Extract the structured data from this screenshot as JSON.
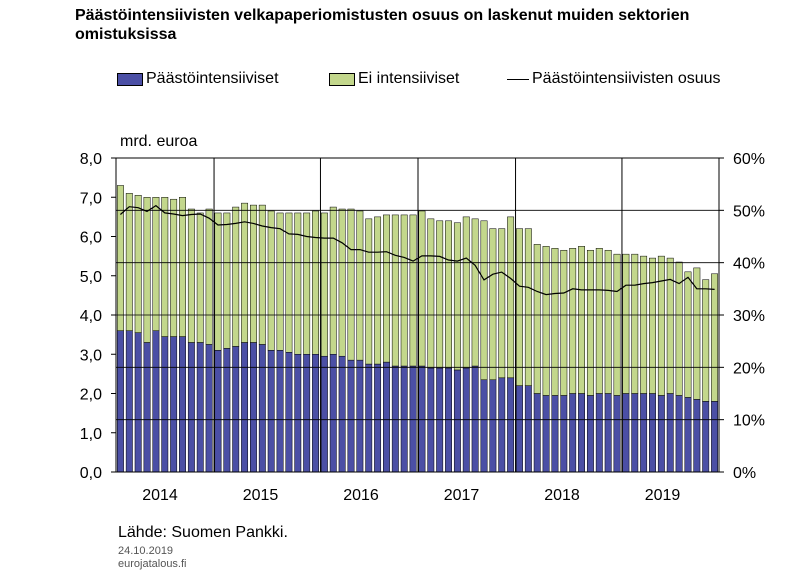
{
  "title": "Päästöintensiivisten velkapaperiomistusten osuus on laskenut muiden sektorien omistuksissa",
  "unit_label": "mrd. euroa",
  "source": "Lähde: Suomen Pankki.",
  "date": "24.10.2019",
  "site": "eurojatalous.fi",
  "colors": {
    "intensive": "#4b4fa5",
    "other": "#c3d78c",
    "line": "#000000"
  },
  "chart_data": {
    "type": "bar",
    "stacked": true,
    "x_labels": [
      "2014",
      "2015",
      "2016",
      "2017",
      "2018",
      "2019"
    ],
    "y_left": {
      "min": 0,
      "max": 8,
      "ticks": [
        "0,0",
        "1,0",
        "2,0",
        "3,0",
        "4,0",
        "5,0",
        "6,0",
        "7,0",
        "8,0"
      ]
    },
    "y_right": {
      "min": 0,
      "max": 60,
      "ticks": [
        "0%",
        "10%",
        "20%",
        "30%",
        "40%",
        "50%",
        "60%"
      ]
    },
    "series": [
      {
        "name": "Päästöintensiiviset",
        "type": "bar",
        "axis": "left",
        "values": [
          3.6,
          3.6,
          3.55,
          3.3,
          3.6,
          3.45,
          3.45,
          3.45,
          3.3,
          3.3,
          3.25,
          3.1,
          3.15,
          3.2,
          3.3,
          3.3,
          3.25,
          3.1,
          3.1,
          3.05,
          3.0,
          3.0,
          3.0,
          2.95,
          3.0,
          2.95,
          2.85,
          2.85,
          2.75,
          2.75,
          2.8,
          2.7,
          2.7,
          2.7,
          2.7,
          2.65,
          2.65,
          2.65,
          2.6,
          2.65,
          2.7,
          2.35,
          2.35,
          2.4,
          2.4,
          2.2,
          2.2,
          2.0,
          1.95,
          1.95,
          1.95,
          2.0,
          2.0,
          1.95,
          2.0,
          2.0,
          1.95,
          2.0,
          2.0,
          2.0,
          2.0,
          1.95,
          2.0,
          1.95,
          1.9,
          1.85,
          1.8,
          1.8
        ]
      },
      {
        "name": "Ei intensiiviset",
        "type": "bar",
        "axis": "left",
        "values": [
          3.7,
          3.5,
          3.5,
          3.7,
          3.4,
          3.55,
          3.5,
          3.55,
          3.4,
          3.3,
          3.45,
          3.5,
          3.45,
          3.55,
          3.55,
          3.5,
          3.55,
          3.55,
          3.5,
          3.55,
          3.6,
          3.6,
          3.65,
          3.65,
          3.75,
          3.75,
          3.85,
          3.8,
          3.7,
          3.75,
          3.75,
          3.85,
          3.85,
          3.85,
          3.95,
          3.8,
          3.75,
          3.75,
          3.75,
          3.85,
          3.75,
          4.05,
          3.85,
          3.8,
          4.1,
          4.0,
          4.0,
          3.8,
          3.8,
          3.75,
          3.7,
          3.7,
          3.75,
          3.7,
          3.7,
          3.65,
          3.6,
          3.55,
          3.55,
          3.5,
          3.45,
          3.55,
          3.45,
          3.4,
          3.2,
          3.35,
          3.1,
          3.25
        ]
      },
      {
        "name": "Päästöintensiivisten osuus",
        "type": "line",
        "axis": "right",
        "values": [
          49.2,
          50.7,
          50.5,
          49.8,
          50.9,
          49.5,
          49.3,
          49.0,
          49.2,
          49.3,
          48.5,
          47.2,
          47.3,
          47.5,
          47.8,
          47.5,
          47.0,
          46.7,
          46.5,
          45.5,
          45.4,
          45.0,
          44.8,
          44.7,
          44.7,
          43.8,
          42.5,
          42.5,
          42.0,
          42.0,
          42.1,
          41.4,
          41.0,
          40.3,
          41.3,
          41.3,
          41.2,
          40.5,
          40.3,
          40.9,
          39.5,
          36.7,
          37.8,
          38.2,
          37.0,
          35.5,
          35.3,
          34.5,
          33.9,
          34.1,
          34.2,
          35.0,
          34.8,
          34.8,
          34.8,
          34.7,
          34.5,
          35.7,
          35.7,
          36.0,
          36.2,
          36.5,
          36.8,
          36.0,
          37.2,
          35.0,
          35.0,
          34.9
        ]
      }
    ],
    "grid": "vertical year separators only"
  }
}
